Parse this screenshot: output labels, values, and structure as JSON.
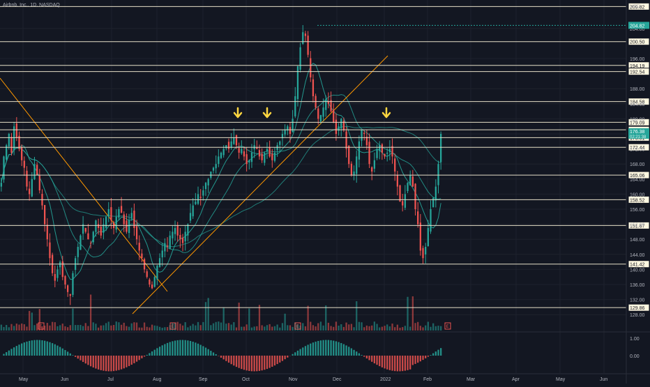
{
  "header": {
    "symbol": "Airbnb, Inc., 1D, NASDAQ"
  },
  "colors": {
    "bg": "#131722",
    "up": "#26a69a",
    "down": "#ef5350",
    "hline": "#e6e0c8",
    "trend": "#ff9800",
    "ma": "#26a69a",
    "arrow": "#ffd740",
    "price_tag": "#26a69a",
    "grid": "#1e222d"
  },
  "chart_data": {
    "type": "candlestick",
    "title": "",
    "price_axis": {
      "min": 126,
      "max": 211,
      "ticks": [
        "128.00",
        "132.00",
        "136.00",
        "140.00",
        "144.00",
        "148.00",
        "152.00",
        "156.00",
        "160.00",
        "164.00",
        "168.00",
        "172.00",
        "176.00",
        "180.00",
        "184.00",
        "188.00",
        "196.00",
        "204.00"
      ],
      "currency": "USD"
    },
    "time_axis": {
      "labels": [
        "May",
        "Jun",
        "Jul",
        "Aug",
        "Sep",
        "Oct",
        "Nov",
        "Dec",
        "2022",
        "Feb",
        "Mar",
        "Apr",
        "May",
        "Jun"
      ]
    },
    "horizontal_levels": [
      "209.82",
      "200.50",
      "194.19",
      "192.54",
      "184.58",
      "179.09",
      "177.08",
      "175.01",
      "172.44",
      "165.06",
      "158.52",
      "151.67",
      "141.42",
      "129.86"
    ],
    "current_price": {
      "value": "176.38",
      "countdown": "02:21:38"
    },
    "alt_price": "204.82",
    "annotations": {
      "arrows": 3,
      "earnings_markers": [
        "E",
        "E",
        "E",
        "E"
      ]
    },
    "oscillator": {
      "ticks": [
        "1.00",
        "0.00"
      ]
    },
    "candles_close": [
      163,
      170,
      173,
      176,
      171,
      178,
      175,
      172,
      169,
      167,
      162,
      160,
      164,
      168,
      165,
      161,
      157,
      152,
      148,
      143,
      139,
      137,
      140,
      142,
      138,
      136,
      134,
      133,
      139,
      143,
      146,
      149,
      152,
      150,
      148,
      147,
      150,
      153,
      151,
      149,
      152,
      154,
      156,
      153,
      151,
      154,
      156,
      155,
      152,
      150,
      153,
      155,
      151,
      148,
      145,
      143,
      140,
      138,
      136,
      135,
      138,
      141,
      143,
      145,
      147,
      146,
      149,
      150,
      151,
      149,
      148,
      147,
      150,
      152,
      155,
      157,
      158,
      160,
      159,
      161,
      163,
      164,
      166,
      167,
      168,
      170,
      171,
      172,
      173,
      172,
      174,
      175,
      173,
      171,
      172,
      170,
      168,
      169,
      171,
      173,
      172,
      170,
      169,
      171,
      172,
      170,
      169,
      171,
      173,
      174,
      176,
      177,
      178,
      176,
      180,
      186,
      194,
      199,
      203,
      202,
      197,
      191,
      186,
      183,
      180,
      181,
      183,
      185,
      184,
      182,
      179,
      176,
      178,
      180,
      177,
      172,
      168,
      165,
      166,
      170,
      174,
      177,
      176,
      173,
      168,
      166,
      169,
      172,
      173,
      171,
      170,
      171,
      172,
      170,
      166,
      162,
      158,
      157,
      160,
      163,
      165,
      162,
      156,
      152,
      145,
      143,
      146,
      151,
      156,
      159,
      162,
      168,
      176
    ]
  }
}
